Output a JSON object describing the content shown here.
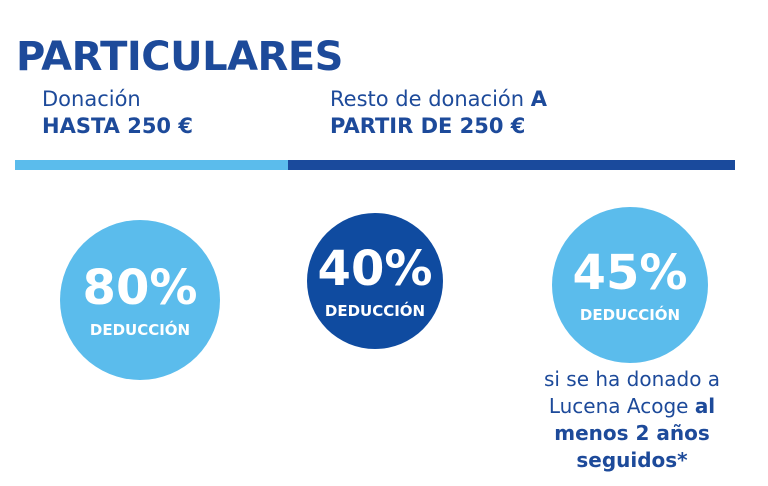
{
  "header": {
    "title": "PARTICULARES"
  },
  "tiers": [
    {
      "line1": [
        "Donación"
      ],
      "line2": "HASTA 250 €"
    },
    {
      "line1": [
        "Resto de donación ",
        "A"
      ],
      "line2": "PARTIR DE 250 €"
    }
  ],
  "circles": [
    {
      "value": "80%",
      "label": "DEDUCCIÓN"
    },
    {
      "value": "40%",
      "label": "DEDUCCIÓN"
    },
    {
      "value": "45%",
      "label": "DEDUCCIÓN"
    }
  ],
  "note": {
    "lines": [
      [
        "si se ha donado a"
      ],
      [
        "Lucena Acoge ",
        "al"
      ],
      [
        "menos 2 años"
      ],
      [
        "seguidos*"
      ]
    ]
  }
}
